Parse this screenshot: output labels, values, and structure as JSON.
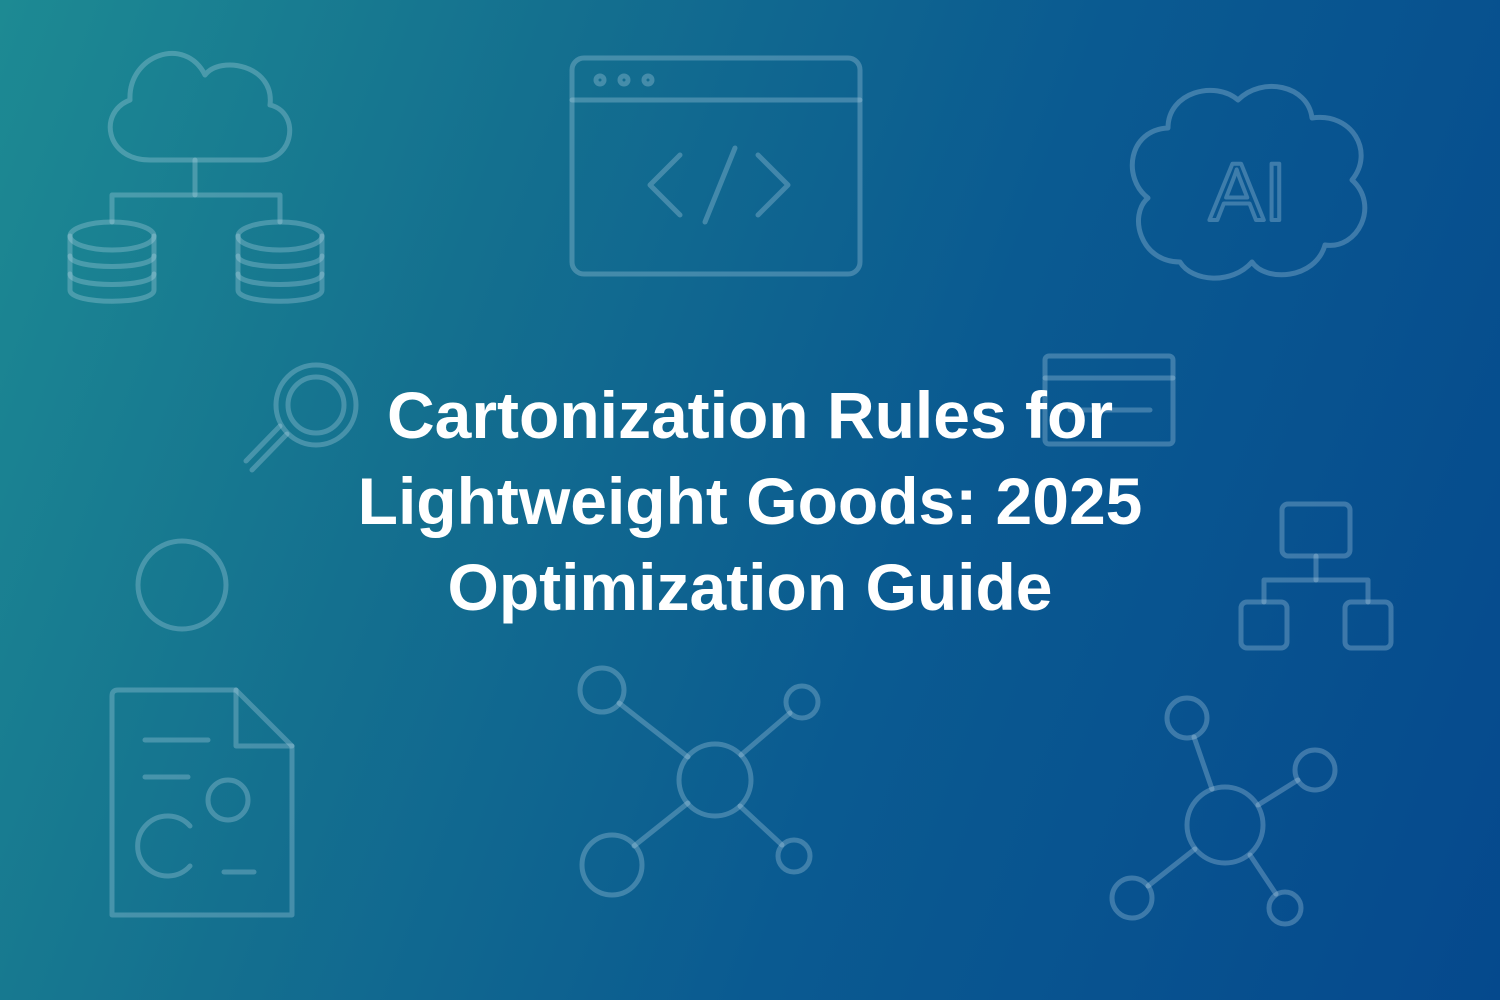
{
  "banner": {
    "title": "Cartonization Rules for\nLightweight Goods: 2025\nOptimization Guide",
    "background_colors": [
      "#1d8a93",
      "#05498d"
    ],
    "title_color": "#ffffff",
    "icons": {
      "cloud_database": "cloud-database-icon",
      "browser_code": "browser-code-icon",
      "ai_cloud": "ai-cloud-icon",
      "ai_label": "AI",
      "magnifier": "magnifier-icon",
      "window": "window-icon",
      "circle": "circle-icon",
      "hierarchy": "hierarchy-icon",
      "document": "document-icon",
      "network_left": "network-icon",
      "network_right": "network-icon"
    }
  }
}
